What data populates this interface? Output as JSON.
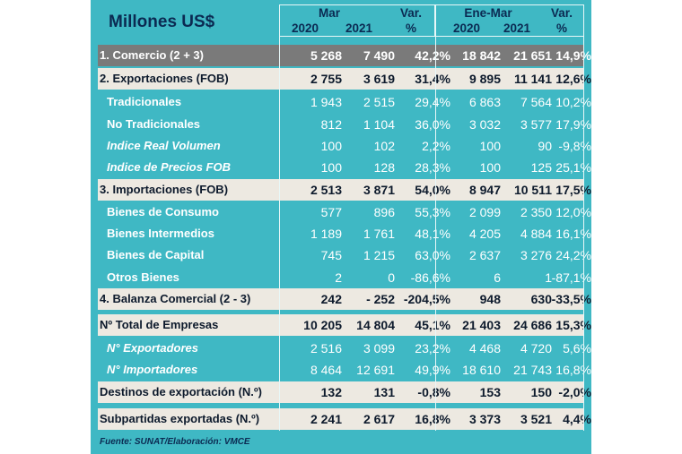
{
  "header": {
    "title": "Millones US$",
    "group1": "Mar",
    "group2": "Ene-Mar",
    "years1": [
      "2020",
      "2021"
    ],
    "years2": [
      "2020",
      "2021"
    ],
    "var_label": "Var.",
    "var_unit": "%"
  },
  "rows": [
    {
      "label": "1. Comercio (2 + 3)",
      "style": "gray",
      "values": [
        "5 268",
        "7 490",
        "42,2%",
        "18 842",
        "21 651",
        "14,9%"
      ]
    },
    {
      "label": "2. Exportaciones (FOB)",
      "style": "band",
      "values": [
        "2 755",
        "3 619",
        "31,4%",
        "9 895",
        "11 141",
        "12,6%"
      ]
    },
    {
      "label": "Tradicionales",
      "style": "plain",
      "values": [
        "1 943",
        "2 515",
        "29,4%",
        "6 863",
        "7 564",
        "10,2%"
      ]
    },
    {
      "label": "No Tradicionales",
      "style": "plain",
      "values": [
        "812",
        "1 104",
        "36,0%",
        "3 032",
        "3 577",
        "17,9%"
      ]
    },
    {
      "label": "Indice Real Volumen",
      "style": "plain-it",
      "values": [
        "100",
        "102",
        "2,2%",
        "100",
        "90",
        "-9,8%"
      ]
    },
    {
      "label": "Indice de Precios FOB",
      "style": "plain-it",
      "values": [
        "100",
        "128",
        "28,3%",
        "100",
        "125",
        "25,1%"
      ]
    },
    {
      "label": "3. Importaciones (FOB)",
      "style": "band",
      "values": [
        "2 513",
        "3 871",
        "54,0%",
        "8 947",
        "10 511",
        "17,5%"
      ]
    },
    {
      "label": "Bienes de Consumo",
      "style": "plain",
      "values": [
        "577",
        "896",
        "55,3%",
        "2 099",
        "2 350",
        "12,0%"
      ]
    },
    {
      "label": "Bienes Intermedios",
      "style": "plain",
      "values": [
        "1 189",
        "1 761",
        "48,1%",
        "4 205",
        "4 884",
        "16,1%"
      ]
    },
    {
      "label": "Bienes de Capital",
      "style": "plain",
      "values": [
        "745",
        "1 215",
        "63,0%",
        "2 637",
        "3 276",
        "24,2%"
      ]
    },
    {
      "label": "Otros Bienes",
      "style": "plain",
      "values": [
        "2",
        "0",
        "-86,6%",
        "6",
        "1",
        "-87,1%"
      ]
    },
    {
      "label": "4. Balanza Comercial (2 - 3)",
      "style": "band",
      "values": [
        "242",
        "- 252",
        "-204,5%",
        "948",
        "630",
        "-33,5%"
      ]
    },
    {
      "label": "Nº Total de Empresas",
      "style": "band",
      "values": [
        "10 205",
        "14 804",
        "45,1%",
        "21 403",
        "24 686",
        "15,3%"
      ]
    },
    {
      "label": "N° Exportadores",
      "style": "plain-it",
      "values": [
        "2 516",
        "3 099",
        "23,2%",
        "4 468",
        "4 720",
        "5,6%"
      ]
    },
    {
      "label": "N° Importadores",
      "style": "plain-it",
      "values": [
        "8 464",
        "12 691",
        "49,9%",
        "18 610",
        "21 743",
        "16,8%"
      ]
    },
    {
      "label": "Destinos de exportación (N.º)",
      "style": "band",
      "values": [
        "132",
        "131",
        "-0,8%",
        "153",
        "150",
        "-2,0%"
      ]
    },
    {
      "label": "Subpartidas exportadas  (N.º)",
      "style": "band",
      "values": [
        "2 241",
        "2 617",
        "16,8%",
        "3 373",
        "3 521",
        "4,4%"
      ]
    }
  ],
  "source": "Fuente: SUNAT/Elaboración: VMCE"
}
